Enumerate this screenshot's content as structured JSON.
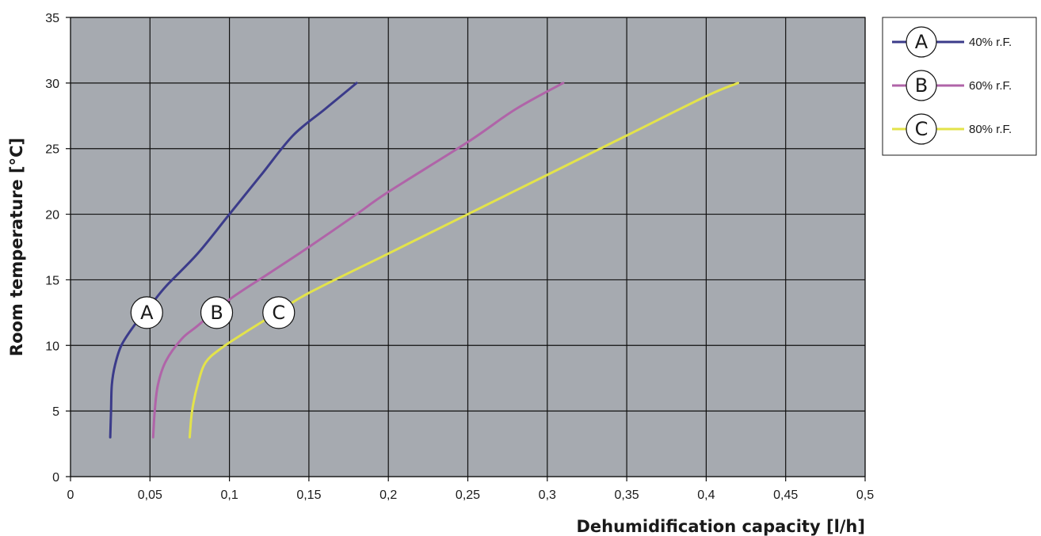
{
  "chart_data": {
    "type": "line",
    "xlabel": "Dehumidification capacity [l/h]",
    "ylabel": "Room temperature [°C]",
    "xlim": [
      0,
      0.5
    ],
    "ylim": [
      0,
      35
    ],
    "x_ticks": [
      "0",
      "0,05",
      "0,1",
      "0,15",
      "0,2",
      "0,25",
      "0,3",
      "0,35",
      "0,4",
      "0,45",
      "0,5"
    ],
    "y_ticks": [
      "0",
      "5",
      "10",
      "15",
      "20",
      "25",
      "30",
      "35"
    ],
    "grid": true,
    "plot_background": "#a6aab0",
    "legend_position": "top-right",
    "series": [
      {
        "name": "40% r.F.",
        "marker_label": "A",
        "color": "#3b3b8a",
        "points": [
          [
            0.025,
            3
          ],
          [
            0.0255,
            5
          ],
          [
            0.026,
            7
          ],
          [
            0.028,
            8.5
          ],
          [
            0.032,
            10
          ],
          [
            0.04,
            11.5
          ],
          [
            0.05,
            13
          ],
          [
            0.06,
            14.5
          ],
          [
            0.08,
            17
          ],
          [
            0.1,
            20
          ],
          [
            0.12,
            23
          ],
          [
            0.14,
            26
          ],
          [
            0.16,
            28
          ],
          [
            0.18,
            30
          ]
        ]
      },
      {
        "name": "60% r.F.",
        "marker_label": "B",
        "color": "#b064a8",
        "points": [
          [
            0.052,
            3
          ],
          [
            0.053,
            5
          ],
          [
            0.055,
            7
          ],
          [
            0.06,
            8.8
          ],
          [
            0.07,
            10.5
          ],
          [
            0.08,
            11.5
          ],
          [
            0.1,
            13.5
          ],
          [
            0.125,
            15.5
          ],
          [
            0.15,
            17.5
          ],
          [
            0.18,
            20
          ],
          [
            0.2,
            21.7
          ],
          [
            0.25,
            25.5
          ],
          [
            0.28,
            28
          ],
          [
            0.31,
            30
          ]
        ]
      },
      {
        "name": "80% r.F.",
        "marker_label": "C",
        "color": "#e3e34a",
        "points": [
          [
            0.075,
            3
          ],
          [
            0.0765,
            5
          ],
          [
            0.08,
            7
          ],
          [
            0.085,
            8.7
          ],
          [
            0.095,
            9.8
          ],
          [
            0.11,
            11
          ],
          [
            0.13,
            12.5
          ],
          [
            0.15,
            14
          ],
          [
            0.2,
            17
          ],
          [
            0.25,
            20
          ],
          [
            0.3,
            23
          ],
          [
            0.35,
            26
          ],
          [
            0.4,
            29
          ],
          [
            0.42,
            30
          ]
        ]
      }
    ],
    "callouts": [
      {
        "label": "A",
        "x": 0.048,
        "y": 12.5
      },
      {
        "label": "B",
        "x": 0.092,
        "y": 12.5
      },
      {
        "label": "C",
        "x": 0.131,
        "y": 12.5
      }
    ]
  }
}
